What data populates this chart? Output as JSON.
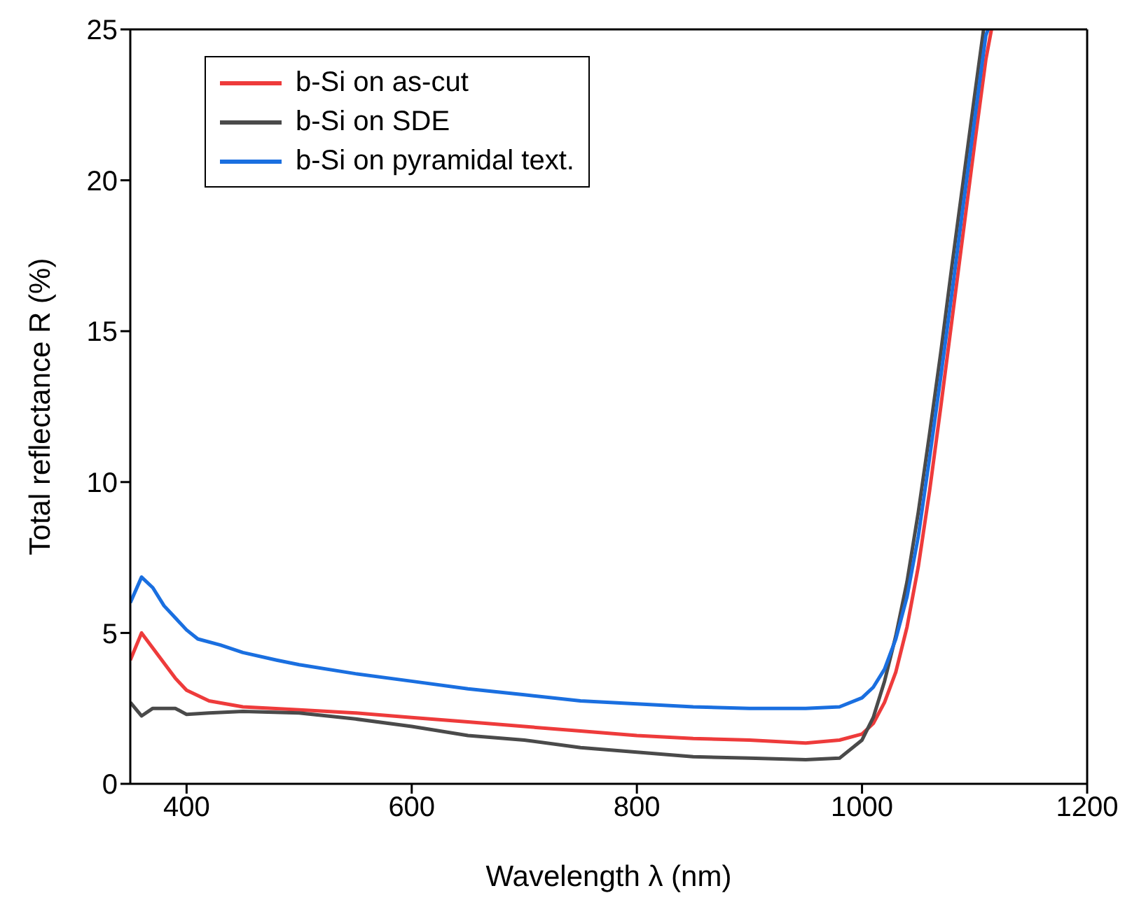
{
  "chart_data": {
    "type": "line",
    "xlabel": "Wavelength λ (nm)",
    "ylabel": "Total reflectance R (%)",
    "xlim": [
      350,
      1200
    ],
    "xticks": [
      400,
      600,
      800,
      1000,
      1200
    ],
    "ylim": [
      0,
      25
    ],
    "yticks": [
      0,
      5,
      10,
      15,
      20,
      25
    ],
    "legend": "top left",
    "grid": false,
    "line_style": "solid",
    "marker": "none",
    "series": [
      {
        "name": "b-Si on as-cut",
        "color": "#ee3b3b",
        "x": [
          350,
          360,
          370,
          390,
          400,
          420,
          450,
          500,
          550,
          600,
          650,
          700,
          750,
          800,
          850,
          900,
          950,
          980,
          1000,
          1010,
          1020,
          1030,
          1040,
          1050,
          1060,
          1070,
          1080,
          1090,
          1100,
          1110,
          1115
        ],
        "values": [
          4.1,
          5.0,
          4.5,
          3.5,
          3.1,
          2.75,
          2.55,
          2.45,
          2.35,
          2.2,
          2.05,
          1.9,
          1.75,
          1.6,
          1.5,
          1.45,
          1.35,
          1.45,
          1.65,
          2.0,
          2.7,
          3.7,
          5.2,
          7.2,
          9.7,
          12.5,
          15.4,
          18.3,
          21.2,
          24.0,
          25
        ]
      },
      {
        "name": "b-Si on SDE",
        "color": "#4a4a4a",
        "x": [
          350,
          360,
          370,
          390,
          400,
          420,
          450,
          500,
          550,
          600,
          650,
          700,
          750,
          800,
          850,
          900,
          950,
          980,
          1000,
          1010,
          1020,
          1030,
          1040,
          1050,
          1060,
          1070,
          1080,
          1090,
          1100,
          1108
        ],
        "values": [
          2.7,
          2.25,
          2.5,
          2.5,
          2.3,
          2.35,
          2.4,
          2.35,
          2.15,
          1.9,
          1.6,
          1.45,
          1.2,
          1.05,
          0.9,
          0.85,
          0.8,
          0.85,
          1.45,
          2.2,
          3.4,
          4.9,
          6.7,
          9.0,
          11.6,
          14.3,
          17.2,
          20.0,
          22.8,
          25
        ]
      },
      {
        "name": "b-Si on pyramidal text.",
        "color": "#1a6fe0",
        "x": [
          350,
          360,
          370,
          380,
          400,
          410,
          430,
          450,
          480,
          500,
          550,
          600,
          650,
          700,
          750,
          800,
          850,
          900,
          950,
          980,
          1000,
          1010,
          1020,
          1030,
          1040,
          1050,
          1060,
          1070,
          1080,
          1090,
          1100,
          1110,
          1112
        ],
        "values": [
          6.0,
          6.85,
          6.5,
          5.9,
          5.1,
          4.8,
          4.6,
          4.35,
          4.1,
          3.95,
          3.65,
          3.4,
          3.15,
          2.95,
          2.75,
          2.65,
          2.55,
          2.5,
          2.5,
          2.55,
          2.85,
          3.2,
          3.8,
          4.8,
          6.2,
          8.2,
          10.8,
          13.5,
          16.3,
          19.2,
          22.0,
          24.8,
          25
        ]
      }
    ]
  }
}
